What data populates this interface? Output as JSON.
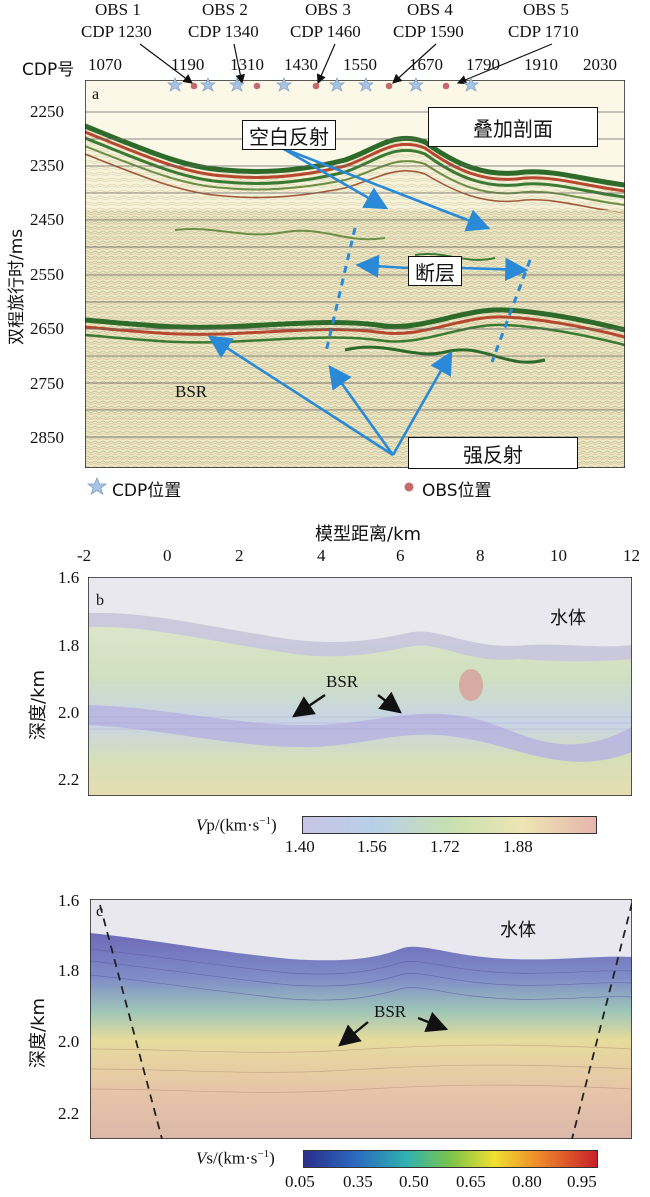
{
  "panel_a": {
    "label": "a",
    "obs": [
      {
        "name": "OBS 1",
        "cdp": "CDP 1230"
      },
      {
        "name": "OBS 2",
        "cdp": "CDP 1340"
      },
      {
        "name": "OBS 3",
        "cdp": "CDP 1460"
      },
      {
        "name": "OBS 4",
        "cdp": "CDP 1590"
      },
      {
        "name": "OBS 5",
        "cdp": "CDP 1710"
      }
    ],
    "cdp_axis_label": "CDP号",
    "cdp_ticks": [
      "1070",
      "1190",
      "1310",
      "1430",
      "1550",
      "1670",
      "1790",
      "1910",
      "2030"
    ],
    "y_label": "双程旅行时/ms",
    "y_ticks": [
      "2250",
      "2350",
      "2450",
      "2550",
      "2650",
      "2750",
      "2850"
    ],
    "annotations": {
      "blank": "空白反射",
      "stack": "叠加剖面",
      "fault": "断层",
      "strong": "强反射",
      "bsr": "BSR"
    },
    "legend": {
      "cdp": "CDP位置",
      "obs": "OBS位置"
    },
    "colors": {
      "star": "#a8c4e4",
      "obs_dot": "#c46a6a",
      "arrow": "#2a8ad8"
    }
  },
  "panel_b": {
    "label": "b",
    "x_label": "模型距离/km",
    "x_ticks": [
      "-2",
      "0",
      "2",
      "4",
      "6",
      "8",
      "10",
      "12"
    ],
    "y_label": "深度/km",
    "y_ticks": [
      "1.6",
      "1.8",
      "2.0",
      "2.2"
    ],
    "water": "水体",
    "bsr": "BSR",
    "colorbar": {
      "label_prefix": "V",
      "label_suffix": "p/(km·s",
      "label_sup": "−1",
      "label_close": ")",
      "ticks": [
        "1.40",
        "1.56",
        "1.72",
        "1.88"
      ]
    }
  },
  "panel_c": {
    "label": "c",
    "y_label": "深度/km",
    "y_ticks": [
      "1.6",
      "1.8",
      "2.0",
      "2.2"
    ],
    "water": "水体",
    "bsr": "BSR",
    "colorbar": {
      "label_prefix": "V",
      "label_suffix": "s/(km·s",
      "label_sup": "−1",
      "label_close": ")",
      "ticks": [
        "0.05",
        "0.35",
        "0.50",
        "0.65",
        "0.80",
        "0.95"
      ]
    }
  }
}
